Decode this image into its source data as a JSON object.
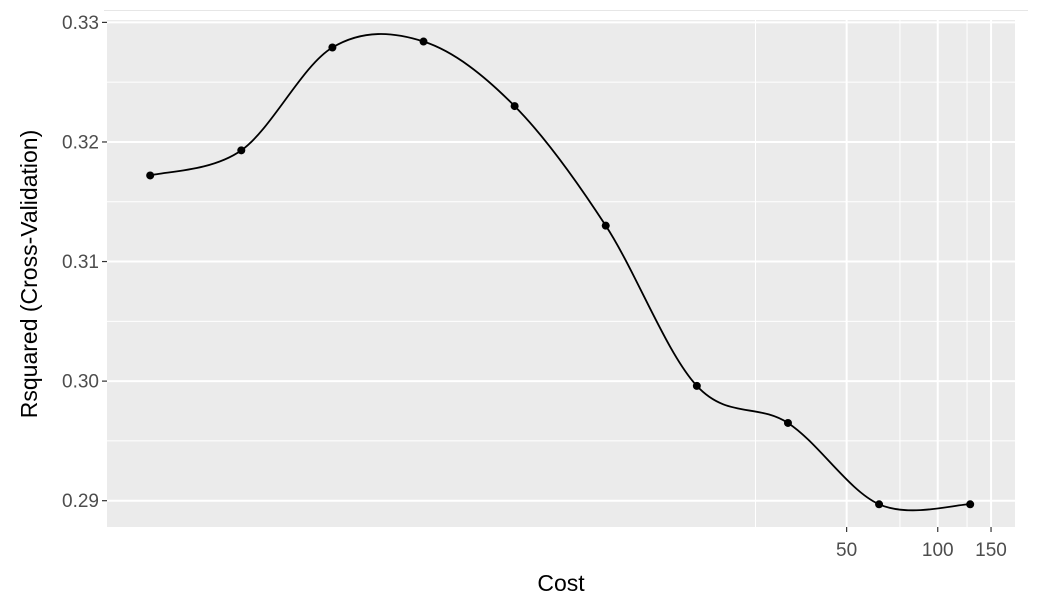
{
  "chart_data": {
    "type": "line",
    "title": "",
    "xlabel": "Cost",
    "ylabel": "Rsquared (Cross-Validation)",
    "x_scale": "log2",
    "xlim": [
      0.18,
      180
    ],
    "ylim": [
      0.2878,
      0.3302
    ],
    "x_ticks": [
      {
        "value": 50,
        "label": "50"
      },
      {
        "value": 100,
        "label": "100"
      },
      {
        "value": 150,
        "label": "150"
      }
    ],
    "x_minor_ticks": [
      25,
      75,
      125
    ],
    "y_ticks": [
      {
        "value": 0.29,
        "label": "0.29"
      },
      {
        "value": 0.3,
        "label": "0.30"
      },
      {
        "value": 0.31,
        "label": "0.31"
      },
      {
        "value": 0.32,
        "label": "0.32"
      },
      {
        "value": 0.33,
        "label": "0.33"
      }
    ],
    "y_minor_ticks": [
      0.295,
      0.305,
      0.315,
      0.325
    ],
    "grid": true,
    "legend": "none",
    "series": [
      {
        "x": [
          0.25,
          0.5,
          1,
          2,
          4,
          8,
          16,
          32,
          64,
          128
        ],
        "values": [
          0.3172,
          0.3193,
          0.3279,
          0.3284,
          0.323,
          0.313,
          0.2996,
          0.2965,
          0.2897,
          0.2897
        ]
      }
    ],
    "colors": {
      "panel": "#ebebeb",
      "grid": "#ffffff",
      "line": "#000000",
      "tick_text": "#4d4d4d"
    }
  }
}
